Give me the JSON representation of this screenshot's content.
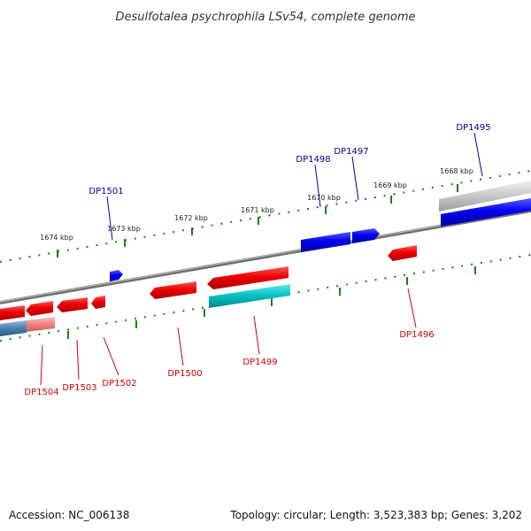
{
  "title": "Desulfotalea psychrophila LSv54, complete genome",
  "footer": {
    "accession": "Accession: NC_006138",
    "summary": "Topology: circular; Length: 3,523,383 bp; Genes: 3,202"
  },
  "colors": {
    "forward_strand": "#0000ee",
    "reverse_strand": "#ee0000",
    "reverse_label": "#cc0000",
    "forward_label": "#000099",
    "rna_gene": "#00c0c0",
    "tick": "#1a7f1a",
    "backbone": "#808080"
  },
  "scale_labels": [
    "1674 kbp",
    "1673 kbp",
    "1672 kbp",
    "1671 kbp",
    "1670 kbp",
    "1669 kbp",
    "1668 kbp"
  ],
  "forward_genes": [
    "DP1501",
    "DP1498",
    "DP1497",
    "DP1495"
  ],
  "reverse_genes": [
    "DP1504",
    "DP1503",
    "DP1502",
    "DP1500",
    "DP1499",
    "DP1496"
  ]
}
